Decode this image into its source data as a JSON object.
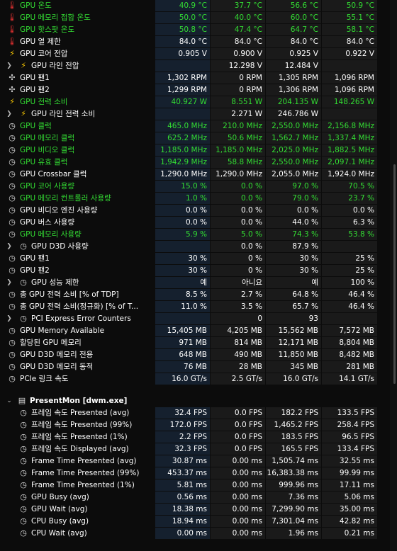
{
  "rows": [
    {
      "icon": "therm",
      "icon_name": "thermometer-icon",
      "label": "GPU 온도",
      "green": true,
      "v": [
        "40.9 °C",
        "37.7 °C",
        "56.6 °C",
        "50.9 °C"
      ],
      "indent": 0
    },
    {
      "icon": "therm",
      "icon_name": "thermometer-icon",
      "label": "GPU 메모리 접합 온도",
      "green": true,
      "v": [
        "50.0 °C",
        "40.0 °C",
        "60.0 °C",
        "55.1 °C"
      ],
      "indent": 0
    },
    {
      "icon": "therm",
      "icon_name": "thermometer-icon",
      "label": "GPU 핫스팟 온도",
      "green": true,
      "v": [
        "50.8 °C",
        "47.4 °C",
        "64.7 °C",
        "58.1 °C"
      ],
      "indent": 0
    },
    {
      "icon": "therm",
      "icon_name": "thermometer-icon",
      "label": "GPU 열 제한",
      "green": false,
      "v": [
        "84.0 °C",
        "84.0 °C",
        "84.0 °C",
        "84.0 °C"
      ],
      "indent": 0
    },
    {
      "icon": "bolt",
      "icon_name": "voltage-bolt-icon",
      "label": "GPU 코어 전압",
      "green": false,
      "v": [
        "0.905 V",
        "0.900 V",
        "0.925 V",
        "0.922 V"
      ],
      "indent": 0
    },
    {
      "icon": "chev",
      "icon_name": "chevron-right-icon",
      "icon2": "bolt",
      "label": "GPU 라인 전압",
      "green": false,
      "v": [
        "",
        "12.298 V",
        "12.484 V",
        ""
      ],
      "indent": 1
    },
    {
      "icon": "fan",
      "icon_name": "fan-icon",
      "label": "GPU 팬1",
      "green": false,
      "v": [
        "1,302 RPM",
        "0 RPM",
        "1,305 RPM",
        "1,096 RPM"
      ],
      "indent": 0
    },
    {
      "icon": "fan",
      "icon_name": "fan-icon",
      "label": "GPU 팬2",
      "green": false,
      "v": [
        "1,299 RPM",
        "0 RPM",
        "1,306 RPM",
        "1,096 RPM"
      ],
      "indent": 0
    },
    {
      "icon": "bolt",
      "icon_name": "power-bolt-icon",
      "label": "GPU 전력 소비",
      "green": true,
      "v": [
        "40.927 W",
        "8.551 W",
        "204.135 W",
        "148.265 W"
      ],
      "indent": 0
    },
    {
      "icon": "chev",
      "icon_name": "chevron-right-icon",
      "icon2": "bolt",
      "label": "GPU 라인 전력 소비",
      "green": false,
      "v": [
        "",
        "2.271 W",
        "246.786 W",
        ""
      ],
      "indent": 1
    },
    {
      "icon": "gauge",
      "icon_name": "clock-gauge-icon",
      "label": "GPU 클럭",
      "green": true,
      "v": [
        "465.0 MHz",
        "210.0 MHz",
        "2,550.0 MHz",
        "2,156.8 MHz"
      ],
      "indent": 0
    },
    {
      "icon": "gauge",
      "icon_name": "clock-gauge-icon",
      "label": "GPU 메모리 클럭",
      "green": true,
      "v": [
        "625.2 MHz",
        "50.6 MHz",
        "1,562.7 MHz",
        "1,337.4 MHz"
      ],
      "indent": 0
    },
    {
      "icon": "gauge",
      "icon_name": "clock-gauge-icon",
      "label": "GPU 비디오 클럭",
      "green": true,
      "v": [
        "1,185.0 MHz",
        "1,185.0 MHz",
        "2,025.0 MHz",
        "1,882.5 MHz"
      ],
      "indent": 0
    },
    {
      "icon": "gauge",
      "icon_name": "clock-gauge-icon",
      "label": "GPU 유효 클럭",
      "green": true,
      "v": [
        "1,942.9 MHz",
        "58.8 MHz",
        "2,550.0 MHz",
        "2,097.1 MHz"
      ],
      "indent": 0
    },
    {
      "icon": "gauge",
      "icon_name": "clock-gauge-icon",
      "label": "GPU Crossbar 클럭",
      "green": false,
      "v": [
        "1,290.0 MHz",
        "1,290.0 MHz",
        "2,055.0 MHz",
        "1,924.0 MHz"
      ],
      "indent": 0
    },
    {
      "icon": "gauge",
      "icon_name": "usage-gauge-icon",
      "label": "GPU 코어 사용량",
      "green": true,
      "v": [
        "15.0 %",
        "0.0 %",
        "97.0 %",
        "70.5 %"
      ],
      "indent": 0
    },
    {
      "icon": "gauge",
      "icon_name": "usage-gauge-icon",
      "label": "GPU 메모리 컨트롤러 사용량",
      "green": true,
      "v": [
        "1.0 %",
        "0.0 %",
        "79.0 %",
        "23.7 %"
      ],
      "indent": 0
    },
    {
      "icon": "gauge",
      "icon_name": "usage-gauge-icon",
      "label": "GPU 비디오 엔진 사용량",
      "green": false,
      "v": [
        "0.0 %",
        "0.0 %",
        "0.0 %",
        "0.0 %"
      ],
      "indent": 0
    },
    {
      "icon": "gauge",
      "icon_name": "usage-gauge-icon",
      "label": "GPU 버스 사용량",
      "green": false,
      "v": [
        "0.0 %",
        "0.0 %",
        "44.0 %",
        "6.3 %"
      ],
      "indent": 0
    },
    {
      "icon": "gauge",
      "icon_name": "usage-gauge-icon",
      "label": "GPU 메모리 사용량",
      "green": true,
      "v": [
        "5.9 %",
        "5.0 %",
        "74.3 %",
        "53.8 %"
      ],
      "indent": 0
    },
    {
      "icon": "chev",
      "icon_name": "chevron-right-icon",
      "icon2": "gauge",
      "label": "GPU D3D 사용량",
      "green": false,
      "v": [
        "",
        "0.0 %",
        "87.9 %",
        ""
      ],
      "indent": 1
    },
    {
      "icon": "gauge",
      "icon_name": "usage-gauge-icon",
      "label": "GPU 팬1",
      "green": false,
      "v": [
        "30 %",
        "0 %",
        "30 %",
        "25 %"
      ],
      "indent": 0
    },
    {
      "icon": "gauge",
      "icon_name": "usage-gauge-icon",
      "label": "GPU 팬2",
      "green": false,
      "v": [
        "30 %",
        "0 %",
        "30 %",
        "25 %"
      ],
      "indent": 0
    },
    {
      "icon": "chev",
      "icon_name": "chevron-right-icon",
      "icon2": "gauge",
      "label": "GPU 성능 제한",
      "green": false,
      "v": [
        "예",
        "아니요",
        "예",
        "100 %"
      ],
      "indent": 1
    },
    {
      "icon": "gauge",
      "icon_name": "usage-gauge-icon",
      "label": "총 GPU 전력 소비 [% of TDP]",
      "green": false,
      "v": [
        "8.5 %",
        "2.7 %",
        "64.8 %",
        "46.4 %"
      ],
      "indent": 0
    },
    {
      "icon": "gauge",
      "icon_name": "usage-gauge-icon",
      "label": "총 GPU 전력 소비(정규화) [% of T...",
      "green": false,
      "v": [
        "11.0 %",
        "3.5 %",
        "65.7 %",
        "46.4 %"
      ],
      "indent": 0
    },
    {
      "icon": "chev",
      "icon_name": "chevron-right-icon",
      "icon2": "gauge",
      "label": "PCI Express Error Counters",
      "green": false,
      "v": [
        "",
        "0",
        "93",
        ""
      ],
      "indent": 1
    },
    {
      "icon": "gauge",
      "icon_name": "memory-gauge-icon",
      "label": "GPU Memory Available",
      "green": false,
      "v": [
        "15,405 MB",
        "4,205 MB",
        "15,562 MB",
        "7,572 MB"
      ],
      "indent": 0
    },
    {
      "icon": "gauge",
      "icon_name": "memory-gauge-icon",
      "label": "할당된 GPU 메모리",
      "green": false,
      "v": [
        "971 MB",
        "814 MB",
        "12,171 MB",
        "8,804 MB"
      ],
      "indent": 0
    },
    {
      "icon": "gauge",
      "icon_name": "memory-gauge-icon",
      "label": "GPU D3D 메모리 전용",
      "green": false,
      "v": [
        "648 MB",
        "490 MB",
        "11,850 MB",
        "8,482 MB"
      ],
      "indent": 0
    },
    {
      "icon": "gauge",
      "icon_name": "memory-gauge-icon",
      "label": "GPU D3D 메모리 동적",
      "green": false,
      "v": [
        "76 MB",
        "28 MB",
        "345 MB",
        "281 MB"
      ],
      "indent": 0
    },
    {
      "icon": "gauge",
      "icon_name": "link-speed-gauge-icon",
      "label": "PCIe 링크 속도",
      "green": false,
      "v": [
        "16.0 GT/s",
        "2.5 GT/s",
        "16.0 GT/s",
        "14.1 GT/s"
      ],
      "indent": 0
    }
  ],
  "group": {
    "label": "PresentMon [dwm.exe]"
  },
  "pm_rows": [
    {
      "label": "프레임 속도 Presented (avg)",
      "v": [
        "32.4 FPS",
        "0.0 FPS",
        "182.2 FPS",
        "133.5 FPS"
      ]
    },
    {
      "label": "프레임 속도 Presented (99%)",
      "v": [
        "172.0 FPS",
        "0.0 FPS",
        "1,465.2 FPS",
        "258.4 FPS"
      ]
    },
    {
      "label": "프레임 속도 Presented (1%)",
      "v": [
        "2.2 FPS",
        "0.0 FPS",
        "183.5 FPS",
        "96.5 FPS"
      ]
    },
    {
      "label": "프레임 속도 Displayed (avg)",
      "v": [
        "32.3 FPS",
        "0.0 FPS",
        "165.5 FPS",
        "133.4 FPS"
      ]
    },
    {
      "label": "Frame Time Presented (avg)",
      "v": [
        "30.87 ms",
        "0.00 ms",
        "1,505.74 ms",
        "32.55 ms"
      ]
    },
    {
      "label": "Frame Time Presented (99%)",
      "v": [
        "453.37 ms",
        "0.00 ms",
        "16,383.38 ms",
        "99.99 ms"
      ]
    },
    {
      "label": "Frame Time Presented (1%)",
      "v": [
        "5.81 ms",
        "0.00 ms",
        "999.96 ms",
        "17.11 ms"
      ]
    },
    {
      "label": "GPU Busy (avg)",
      "v": [
        "0.56 ms",
        "0.00 ms",
        "7.36 ms",
        "5.06 ms"
      ]
    },
    {
      "label": "GPU Wait (avg)",
      "v": [
        "18.38 ms",
        "0.00 ms",
        "7,299.90 ms",
        "35.00 ms"
      ]
    },
    {
      "label": "CPU Busy (avg)",
      "v": [
        "18.94 ms",
        "0.00 ms",
        "7,301.04 ms",
        "42.82 ms"
      ]
    },
    {
      "label": "CPU Wait (avg)",
      "v": [
        "0.00 ms",
        "0.00 ms",
        "1.96 ms",
        "0.21 ms"
      ]
    }
  ]
}
